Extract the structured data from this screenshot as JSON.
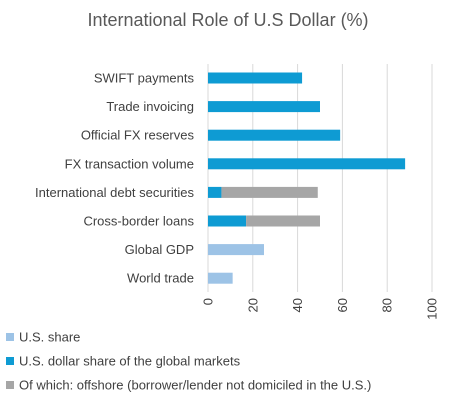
{
  "chart_data": {
    "type": "bar",
    "orientation": "horizontal",
    "stacked": true,
    "title": "International Role of U.S Dollar (%)",
    "xlabel": "",
    "ylabel": "",
    "categories": [
      "SWIFT payments",
      "Trade invoicing",
      "Official FX reserves",
      "FX transaction volume",
      "International debt securities",
      "Cross-border loans",
      "Global GDP",
      "World trade"
    ],
    "series": [
      {
        "name": "U.S. share",
        "color": "#9dc3e6",
        "values": [
          null,
          null,
          null,
          null,
          null,
          null,
          25,
          11
        ]
      },
      {
        "name": "U.S. dollar share of the global markets",
        "color": "#0e9bd3",
        "values": [
          42,
          50,
          59,
          88,
          6,
          17,
          null,
          null
        ]
      },
      {
        "name": "Of which: offshore (borrower/lender not domiciled in the U.S.)",
        "color": "#a6a6a6",
        "values": [
          null,
          null,
          null,
          null,
          43,
          33,
          null,
          null
        ]
      }
    ],
    "xlim": [
      0,
      100
    ],
    "xticks": [
      "0",
      "20",
      "40",
      "60",
      "80",
      "100"
    ],
    "grid": "vertical",
    "legend_position": "bottom-left"
  }
}
